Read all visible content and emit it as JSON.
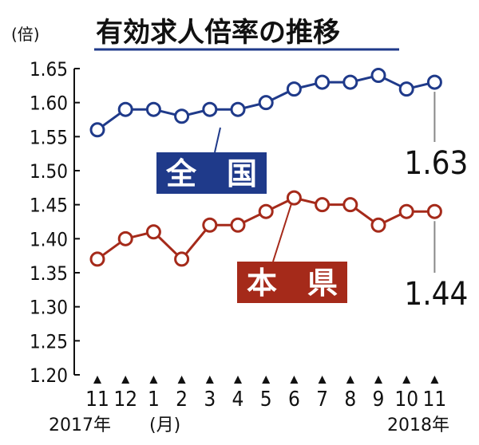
{
  "chart_data": {
    "type": "line",
    "title": "有効求人倍率の推移",
    "unit": "(倍)",
    "categories": [
      "11",
      "12",
      "1",
      "2",
      "3",
      "4",
      "5",
      "6",
      "7",
      "8",
      "9",
      "10",
      "11"
    ],
    "x_year_start": "2017年",
    "x_unit": "(月)",
    "x_year_end": "2018年",
    "ylim": [
      1.2,
      1.65
    ],
    "yticks": [
      "1.65",
      "1.60",
      "1.55",
      "1.50",
      "1.45",
      "1.40",
      "1.35",
      "1.30",
      "1.25",
      "1.20"
    ],
    "grid": false,
    "series": [
      {
        "name": "全　国",
        "color": "#1f3a8a",
        "values": [
          1.56,
          1.59,
          1.59,
          1.58,
          1.59,
          1.59,
          1.6,
          1.62,
          1.63,
          1.63,
          1.64,
          1.62,
          1.63
        ],
        "end_label": "1.63"
      },
      {
        "name": "本　県",
        "color": "#a52a1a",
        "values": [
          1.37,
          1.4,
          1.41,
          1.37,
          1.42,
          1.42,
          1.44,
          1.46,
          1.45,
          1.45,
          1.42,
          1.44,
          1.44
        ],
        "end_label": "1.44"
      }
    ]
  }
}
